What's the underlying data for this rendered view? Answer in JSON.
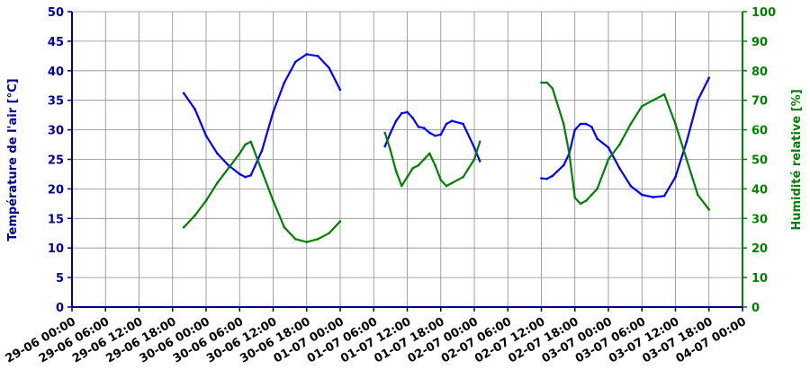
{
  "chart_data": {
    "type": "line",
    "ylabel": "Température de l'air [°C]",
    "y2label": "Humidité relative [%]",
    "ylim": [
      0,
      50
    ],
    "y2lim": [
      0,
      100
    ],
    "y_ticks": [
      "0",
      "5",
      "10",
      "15",
      "20",
      "25",
      "30",
      "35",
      "40",
      "45",
      "50"
    ],
    "y2_ticks": [
      "0",
      "10",
      "20",
      "30",
      "40",
      "50",
      "60",
      "70",
      "80",
      "90",
      "100"
    ],
    "x_ticks": [
      "29-06 00:00",
      "29-06 06:00",
      "29-06 12:00",
      "29-06 18:00",
      "30-06 00:00",
      "30-06 06:00",
      "30-06 12:00",
      "30-06 18:00",
      "01-07 00:00",
      "01-07 06:00",
      "01-07 12:00",
      "01-07 18:00",
      "02-07 00:00",
      "02-07 06:00",
      "02-07 12:00",
      "02-07 18:00",
      "03-07 00:00",
      "03-07 06:00",
      "03-07 12:00",
      "03-07 18:00",
      "04-07 00:00"
    ],
    "grid": true,
    "colors": {
      "temperature": "#0000ff",
      "humidity": "#008000",
      "left_axis": "#00008b",
      "right_axis": "#008000"
    },
    "series": [
      {
        "axis": "left",
        "color": "#0000ff",
        "segments": [
          {
            "x": [
              "29-06 20:00",
              "29-06 22:00",
              "30-06 00:00",
              "30-06 02:00",
              "30-06 04:00",
              "30-06 06:00",
              "30-06 07:00",
              "30-06 08:00",
              "30-06 10:00",
              "30-06 12:00",
              "30-06 14:00",
              "30-06 16:00",
              "30-06 18:00",
              "30-06 20:00",
              "30-06 22:00",
              "30-06 23:59"
            ],
            "y": [
              36.2,
              33.5,
              29.0,
              26.0,
              24.0,
              22.5,
              22.0,
              22.3,
              26.5,
              33.0,
              38.0,
              41.5,
              42.8,
              42.5,
              40.5,
              36.8
            ]
          },
          {
            "x": [
              "01-07 08:00",
              "01-07 09:00",
              "01-07 10:00",
              "01-07 11:00",
              "01-07 12:00",
              "01-07 13:00",
              "01-07 14:00",
              "01-07 15:00",
              "01-07 16:00",
              "01-07 17:00",
              "01-07 18:00",
              "01-07 19:00",
              "01-07 20:00",
              "01-07 22:00",
              "02-07 00:00",
              "02-07 01:00"
            ],
            "y": [
              27.2,
              29.5,
              31.5,
              32.8,
              33.0,
              32.0,
              30.5,
              30.3,
              29.5,
              29.0,
              29.2,
              31.0,
              31.5,
              31.0,
              27.0,
              24.7
            ]
          },
          {
            "x": [
              "02-07 12:00",
              "02-07 13:00",
              "02-07 14:00",
              "02-07 16:00",
              "02-07 17:00",
              "02-07 18:00",
              "02-07 19:00",
              "02-07 20:00",
              "02-07 21:00",
              "02-07 22:00",
              "03-07 00:00",
              "03-07 02:00",
              "03-07 04:00",
              "03-07 06:00",
              "03-07 08:00",
              "03-07 10:00",
              "03-07 12:00",
              "03-07 14:00",
              "03-07 16:00",
              "03-07 18:00"
            ],
            "y": [
              21.8,
              21.7,
              22.2,
              24.0,
              26.0,
              30.0,
              31.0,
              31.0,
              30.5,
              28.5,
              27.0,
              23.5,
              20.5,
              19.0,
              18.6,
              18.8,
              22.0,
              28.0,
              35.0,
              38.8
            ]
          }
        ]
      },
      {
        "axis": "right",
        "color": "#008000",
        "segments": [
          {
            "x": [
              "29-06 20:00",
              "29-06 22:00",
              "30-06 00:00",
              "30-06 02:00",
              "30-06 04:00",
              "30-06 06:00",
              "30-06 07:00",
              "30-06 08:00",
              "30-06 10:00",
              "30-06 12:00",
              "30-06 14:00",
              "30-06 16:00",
              "30-06 18:00",
              "30-06 20:00",
              "30-06 22:00",
              "30-06 23:59"
            ],
            "y": [
              27,
              31,
              36,
              42,
              47,
              52,
              55,
              56,
              46,
              36,
              27,
              23,
              22,
              23,
              25,
              29
            ]
          },
          {
            "x": [
              "01-07 08:00",
              "01-07 09:00",
              "01-07 10:00",
              "01-07 11:00",
              "01-07 12:00",
              "01-07 13:00",
              "01-07 14:00",
              "01-07 15:00",
              "01-07 16:00",
              "01-07 17:00",
              "01-07 18:00",
              "01-07 19:00",
              "01-07 20:00",
              "01-07 22:00",
              "02-07 00:00",
              "02-07 01:00"
            ],
            "y": [
              59,
              53,
              46,
              41,
              44,
              47,
              48,
              50,
              52,
              48,
              43,
              41,
              42,
              44,
              50,
              56
            ]
          },
          {
            "x": [
              "02-07 12:00",
              "02-07 13:00",
              "02-07 14:00",
              "02-07 16:00",
              "02-07 17:00",
              "02-07 18:00",
              "02-07 19:00",
              "02-07 20:00",
              "02-07 21:00",
              "02-07 22:00",
              "03-07 00:00",
              "03-07 02:00",
              "03-07 04:00",
              "03-07 06:00",
              "03-07 08:00",
              "03-07 10:00",
              "03-07 12:00",
              "03-07 14:00",
              "03-07 16:00",
              "03-07 18:00"
            ],
            "y": [
              76,
              76,
              74,
              62,
              52,
              37,
              35,
              36,
              38,
              40,
              50,
              55,
              62,
              68,
              70,
              72,
              62,
              50,
              38,
              33
            ]
          }
        ]
      }
    ]
  }
}
